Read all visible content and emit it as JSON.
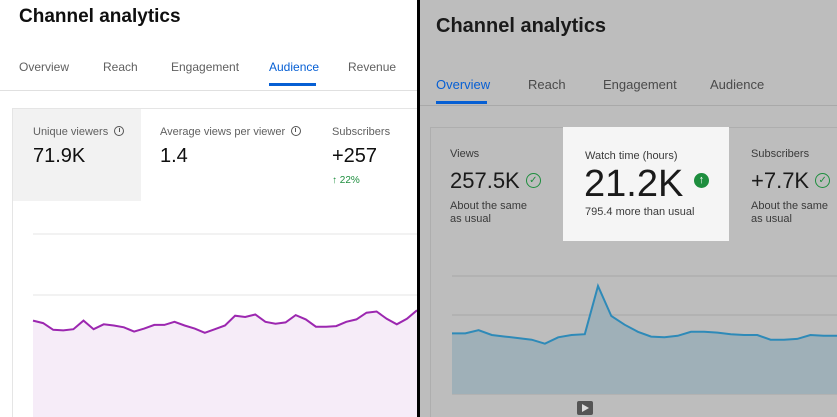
{
  "left": {
    "title": "Channel analytics",
    "tabs": [
      {
        "label": "Overview"
      },
      {
        "label": "Reach"
      },
      {
        "label": "Engagement"
      },
      {
        "label": "Audience",
        "selected": true
      },
      {
        "label": "Revenue"
      }
    ],
    "metrics": [
      {
        "label": "Unique viewers",
        "value": "71.9K",
        "icon": "clock-icon"
      },
      {
        "label": "Average views per viewer",
        "value": "1.4",
        "icon": "clock-icon"
      },
      {
        "label": "Subscribers",
        "value": "+257",
        "change": "22%",
        "change_icon": "arrow-up-icon"
      }
    ],
    "accent_color": "#065fd4",
    "line_color": "#9c27b0",
    "fill_color": "#f6ecf8",
    "series": [
      0.58,
      0.54,
      0.43,
      0.42,
      0.44,
      0.58,
      0.44,
      0.52,
      0.5,
      0.47,
      0.4,
      0.45,
      0.51,
      0.51,
      0.56,
      0.5,
      0.45,
      0.38,
      0.44,
      0.5,
      0.66,
      0.64,
      0.68,
      0.56,
      0.53,
      0.55,
      0.67,
      0.6,
      0.48,
      0.48,
      0.49,
      0.56,
      0.6,
      0.71,
      0.73,
      0.61,
      0.52,
      0.61,
      0.75
    ]
  },
  "right": {
    "title": "Channel analytics",
    "tabs": [
      {
        "label": "Overview",
        "selected": true
      },
      {
        "label": "Reach"
      },
      {
        "label": "Engagement"
      },
      {
        "label": "Audience"
      }
    ],
    "metrics": [
      {
        "label": "Views",
        "value": "257.5K",
        "icon": "check-circle-icon",
        "note": "About the same as usual"
      },
      {
        "label": "Watch time (hours)",
        "value": "21.2K",
        "icon": "arrow-up-circle-icon",
        "note": "795.4 more than usual",
        "highlighted": true
      },
      {
        "label": "Subscribers",
        "value": "+7.7K",
        "icon": "check-circle-icon",
        "note": "About the same as usual"
      }
    ],
    "accent_color": "#065fd4",
    "good_color": "#1e8e3e",
    "line_color": "#2e8ab8",
    "fill_color": "#9fb0b8",
    "series": [
      0.4,
      0.4,
      0.44,
      0.38,
      0.36,
      0.34,
      0.32,
      0.27,
      0.35,
      0.38,
      0.39,
      1.0,
      0.62,
      0.51,
      0.42,
      0.36,
      0.35,
      0.37,
      0.42,
      0.42,
      0.41,
      0.39,
      0.38,
      0.38,
      0.32,
      0.32,
      0.33,
      0.38,
      0.37,
      0.37
    ]
  }
}
